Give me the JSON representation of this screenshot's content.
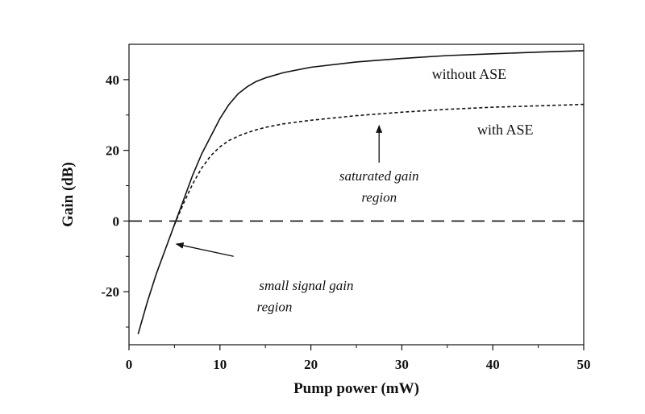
{
  "chart_data": {
    "type": "line",
    "xlabel": "Pump power (mW)",
    "ylabel": "Gain (dB)",
    "xlim": [
      0,
      50
    ],
    "ylim": [
      -35,
      50
    ],
    "xticks": [
      0,
      10,
      20,
      30,
      40,
      50
    ],
    "yticks": [
      -20,
      0,
      20,
      40
    ],
    "xtick_labels": [
      "0",
      "10",
      "20",
      "30",
      "40",
      "50"
    ],
    "ytick_labels": [
      "-20",
      "0",
      "20",
      "40"
    ],
    "grid": false,
    "legend": "none",
    "series": [
      {
        "name": "without ASE",
        "style": "solid",
        "x": [
          1,
          2,
          3,
          4,
          5,
          6,
          7,
          8,
          9,
          10,
          11,
          12,
          13,
          14,
          15,
          17,
          20,
          25,
          30,
          35,
          40,
          45,
          50
        ],
        "y": [
          -32,
          -23,
          -15,
          -8,
          -1,
          6,
          13,
          19,
          24,
          29,
          33,
          36,
          38,
          39.5,
          40.5,
          42,
          43.5,
          45,
          46,
          46.8,
          47.3,
          47.8,
          48.2
        ]
      },
      {
        "name": "with ASE",
        "style": "dashed",
        "x": [
          5,
          6,
          7,
          8,
          9,
          10,
          11,
          12,
          13,
          14,
          15,
          17,
          20,
          25,
          30,
          35,
          40,
          45,
          50
        ],
        "y": [
          -1,
          5,
          10.5,
          15,
          18.5,
          21,
          22.8,
          24,
          25,
          25.8,
          26.5,
          27.5,
          28.5,
          29.8,
          30.8,
          31.6,
          32.2,
          32.6,
          33
        ]
      },
      {
        "name": "",
        "style": "long-dash",
        "x": [
          0,
          50
        ],
        "y": [
          0,
          0
        ]
      }
    ],
    "annotations": [
      {
        "text": "saturated gain",
        "x": 27.5,
        "y": 11.5,
        "arrow_to": [
          27.5,
          27
        ]
      },
      {
        "text": "region",
        "x": 27.5,
        "y": 5.5
      },
      {
        "text": "small signal gain",
        "x": 19.5,
        "y": -19.5,
        "arrow_from": [
          11.5,
          -10
        ],
        "arrow_to": [
          5.2,
          -6.5
        ]
      },
      {
        "text": "region",
        "x": 16,
        "y": -25.5
      }
    ]
  },
  "colors": {
    "line": "#111111",
    "background": "#ffffff"
  }
}
